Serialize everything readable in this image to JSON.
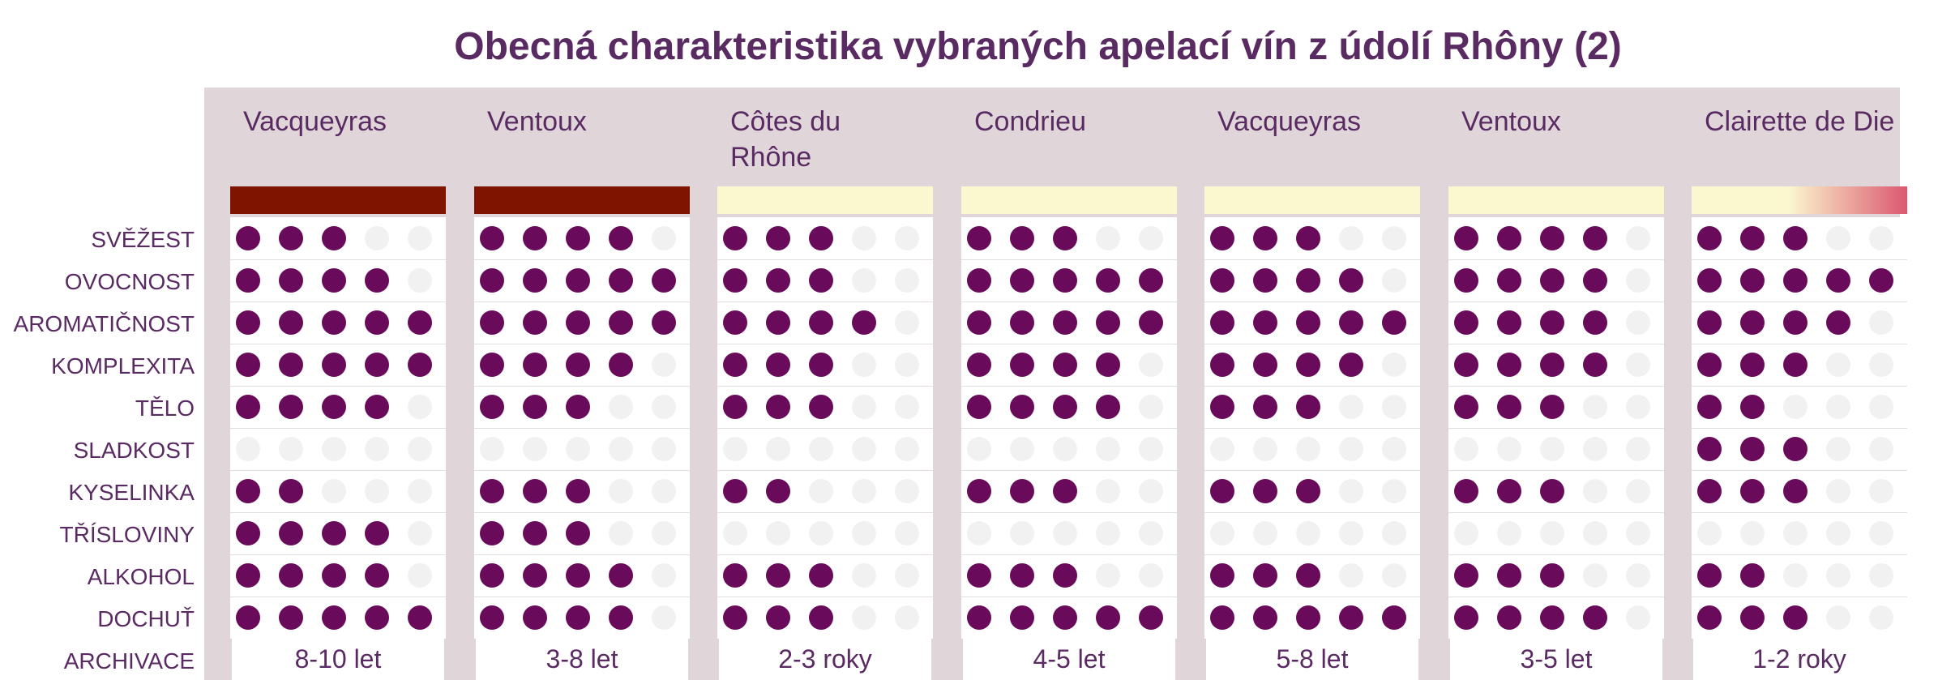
{
  "chart_data": {
    "type": "table",
    "title": "Obecná charakteristika vybraných apelací vín z údolí Rhôny (2)",
    "row_labels": [
      "SVĚŽEST",
      "OVOCNOST",
      "AROMATIČNOST",
      "KOMPLEXITA",
      "TĚLO",
      "SLADKOST",
      "KYSELINKA",
      "TŘÍSLOVINY",
      "ALKOHOL",
      "DOCHUŤ",
      "ARCHIVACE"
    ],
    "max_score": 5,
    "columns": [
      {
        "name": "Vacqueyras",
        "wine_color": "#7f1500",
        "scores": [
          3,
          4,
          5,
          5,
          4,
          0,
          2,
          4,
          4,
          5
        ],
        "aging": "8-10 let"
      },
      {
        "name": "Ventoux",
        "wine_color": "#7f1500",
        "scores": [
          4,
          5,
          5,
          4,
          3,
          0,
          3,
          3,
          4,
          4
        ],
        "aging": "3-8 let"
      },
      {
        "name": "Côtes du Rhône",
        "wine_color": "#fbf7cf",
        "scores": [
          3,
          3,
          4,
          3,
          3,
          0,
          2,
          0,
          3,
          3
        ],
        "aging": "2-3 roky"
      },
      {
        "name": "Condrieu",
        "wine_color": "#fbf7cf",
        "scores": [
          3,
          5,
          5,
          4,
          4,
          0,
          3,
          0,
          3,
          5
        ],
        "aging": "4-5 let"
      },
      {
        "name": "Vacqueyras",
        "wine_color": "#fbf7cf",
        "scores": [
          3,
          4,
          5,
          4,
          3,
          0,
          3,
          0,
          3,
          5
        ],
        "aging": "5-8 let"
      },
      {
        "name": "Ventoux",
        "wine_color": "#fbf7cf",
        "scores": [
          4,
          4,
          4,
          4,
          3,
          0,
          3,
          0,
          3,
          4
        ],
        "aging": "3-5 let"
      },
      {
        "name": "Clairette de Die",
        "wine_color": "#fbf7cf",
        "wine_color_end": "#db5870",
        "scores": [
          3,
          5,
          4,
          3,
          2,
          3,
          3,
          0,
          2,
          3
        ],
        "aging": "1-2 roky"
      }
    ]
  }
}
